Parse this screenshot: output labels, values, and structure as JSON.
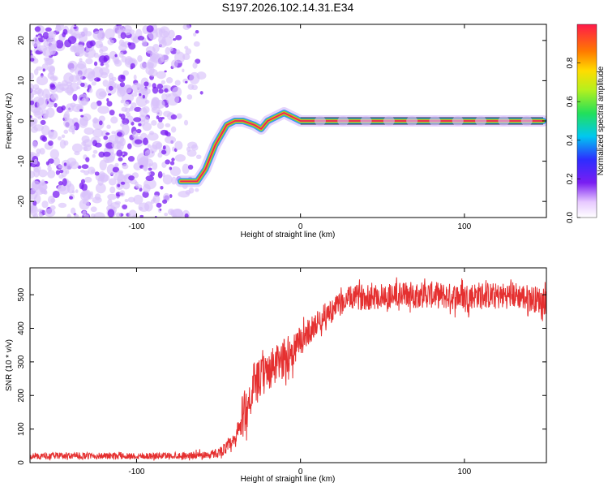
{
  "title": "S197.2026.102.14.31.E34",
  "colors": {
    "track_core": "#e8245a",
    "track_inner": "#f3a21a",
    "track_mid": "#52e052",
    "track_outer": "#3b8cff",
    "noise_dark": "#7a1ef2",
    "noise_light": "#d9c2fb",
    "snr_line": "#e53030",
    "axis": "#000000"
  },
  "chart_data": [
    {
      "type": "heatmap",
      "name": "spectrogram",
      "xlabel": "Height of straight line (km)",
      "ylabel": "Frequency (Hz)",
      "xlim": [
        -165,
        150
      ],
      "ylim": [
        -24,
        24
      ],
      "x_ticks": [
        -100,
        0,
        100
      ],
      "y_ticks": [
        -20,
        -10,
        0,
        10,
        20
      ],
      "grid": false,
      "track": {
        "x": [
          -73,
          -63,
          -58,
          -52,
          -45,
          -40,
          -35,
          -28,
          -24,
          -20,
          -15,
          -10,
          -5,
          0,
          10,
          30,
          60,
          90,
          120,
          148
        ],
        "frequency": [
          -15,
          -15,
          -12,
          -6,
          -1,
          0,
          0,
          -1,
          -2,
          0,
          1,
          2,
          1,
          0,
          0,
          0,
          0,
          0,
          0,
          0
        ]
      },
      "noise_region": {
        "x_range": [
          -165,
          -60
        ],
        "frequency_range": [
          -24,
          24
        ]
      },
      "colorbar": {
        "label": "Normalized spectral amplitude",
        "range": [
          0,
          1
        ],
        "ticks": [
          "0.0",
          "0.2",
          "0.4",
          "0.6",
          "0.8"
        ]
      }
    },
    {
      "type": "line",
      "name": "snr",
      "xlabel": "Height of straight line (km)",
      "ylabel": "SNR (10 * v/v)",
      "xlim": [
        -165,
        150
      ],
      "ylim": [
        0,
        580
      ],
      "x_ticks": [
        -100,
        0,
        100
      ],
      "y_ticks": [
        0,
        100,
        200,
        300,
        400,
        500
      ],
      "grid": false,
      "series": [
        {
          "name": "SNR",
          "x": [
            -165,
            -150,
            -130,
            -110,
            -90,
            -70,
            -55,
            -50,
            -45,
            -40,
            -35,
            -30,
            -25,
            -20,
            -15,
            -10,
            -5,
            0,
            5,
            10,
            15,
            20,
            25,
            30,
            40,
            50,
            60,
            70,
            80,
            90,
            100,
            110,
            120,
            130,
            140,
            150
          ],
          "mean": [
            18,
            20,
            20,
            20,
            20,
            21,
            24,
            30,
            45,
            60,
            140,
            200,
            250,
            270,
            290,
            310,
            330,
            360,
            390,
            415,
            440,
            455,
            475,
            490,
            495,
            495,
            500,
            500,
            500,
            495,
            495,
            500,
            495,
            500,
            490,
            480
          ],
          "amplitude": [
            8,
            10,
            10,
            10,
            10,
            10,
            12,
            14,
            20,
            30,
            70,
            60,
            60,
            60,
            60,
            60,
            55,
            45,
            40,
            35,
            35,
            35,
            35,
            35,
            40,
            40,
            40,
            40,
            40,
            40,
            40,
            40,
            40,
            40,
            40,
            40
          ]
        }
      ]
    }
  ]
}
